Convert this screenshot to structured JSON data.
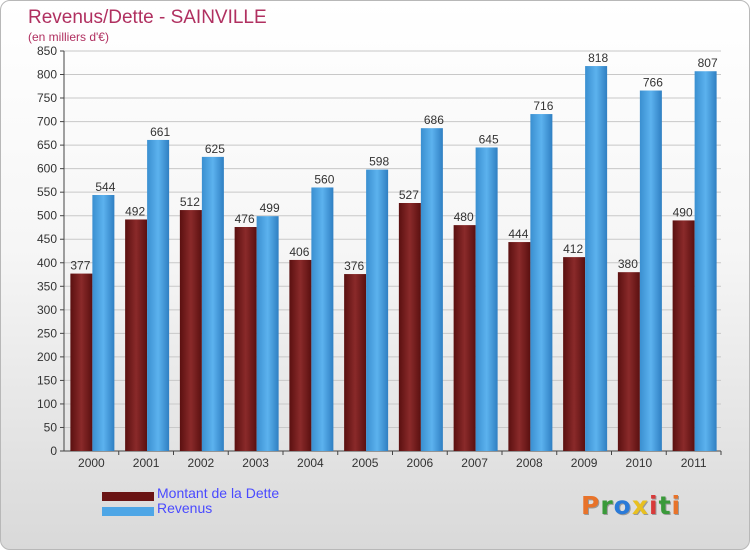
{
  "chart_data": {
    "type": "bar",
    "title": "Revenus/Dette - SAINVILLE",
    "subtitle": "(en milliers d'€)",
    "categories": [
      "2000",
      "2001",
      "2002",
      "2003",
      "2004",
      "2005",
      "2006",
      "2007",
      "2008",
      "2009",
      "2010",
      "2011"
    ],
    "series": [
      {
        "name": "Montant de la Dette",
        "values": [
          377,
          492,
          512,
          476,
          406,
          376,
          527,
          480,
          444,
          412,
          380,
          490
        ],
        "color": "#7a1c1c"
      },
      {
        "name": "Revenus",
        "values": [
          544,
          661,
          625,
          499,
          560,
          598,
          686,
          645,
          716,
          818,
          766,
          807
        ],
        "color": "#4ea6e6"
      }
    ],
    "ylim": [
      0,
      850
    ],
    "ytick_step": 50,
    "grid": true,
    "legend_position": "bottom-left"
  },
  "logo": {
    "letters": [
      "P",
      "r",
      "o",
      "x",
      "i",
      "t",
      "i"
    ],
    "colors": [
      "#e8732a",
      "#3a9a3a",
      "#2a7ad8",
      "#e8c020",
      "#d83a3a",
      "#3a9a3a",
      "#e8732a"
    ]
  }
}
